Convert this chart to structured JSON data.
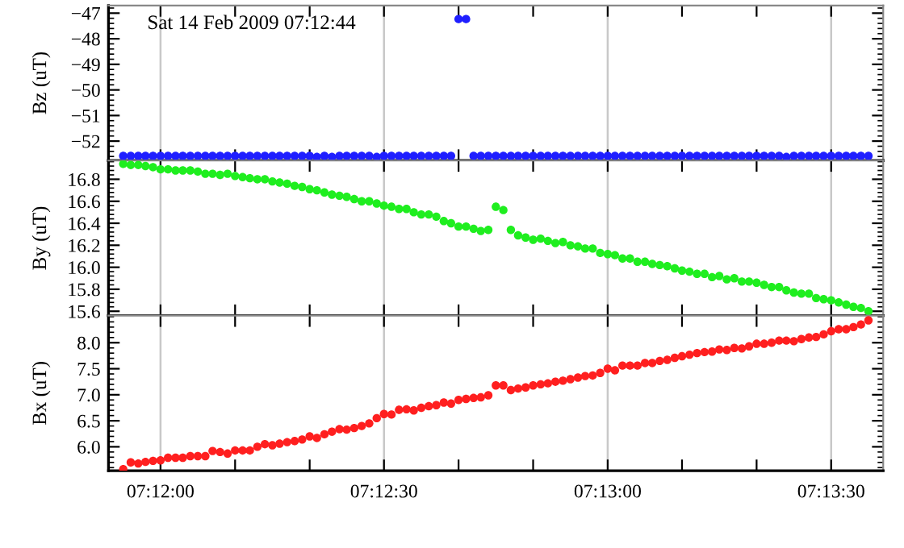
{
  "chart_data": [
    {
      "type": "scatter",
      "annotations": [
        "Sat 14 Feb 2009 07:12:44"
      ],
      "ylabel": "Bz (uT)",
      "color": "#1f1fff",
      "marker": "circle",
      "grid": "x",
      "tick_labels": "y",
      "x": [
        7.19861,
        7.19889,
        7.19917,
        7.19944,
        7.19972,
        7.2,
        7.20028,
        7.20056,
        7.20083,
        7.20111,
        7.20139,
        7.20167,
        7.20194,
        7.20222,
        7.2025,
        7.20278,
        7.20306,
        7.20333,
        7.20361,
        7.20389,
        7.20417,
        7.20444,
        7.20472,
        7.205,
        7.20528,
        7.20556,
        7.20583,
        7.20611,
        7.20639,
        7.20667,
        7.20694,
        7.20722,
        7.2075,
        7.20778,
        7.20806,
        7.20833,
        7.20861,
        7.20889,
        7.20917,
        7.20944,
        7.20972,
        7.21,
        7.21028,
        7.21056,
        7.21083,
        7.21111,
        7.21139,
        7.21167,
        7.21194,
        7.21222,
        7.2125,
        7.21278,
        7.21306,
        7.21333,
        7.21361,
        7.21389,
        7.21417,
        7.21444,
        7.21472,
        7.215,
        7.21528,
        7.21556,
        7.21583,
        7.21611,
        7.21639,
        7.21667,
        7.21694,
        7.21722,
        7.2175,
        7.21778,
        7.21806,
        7.21833,
        7.21861,
        7.21889,
        7.21917,
        7.21944,
        7.21972,
        7.22,
        7.22028,
        7.22056,
        7.22083,
        7.22111,
        7.22139,
        7.22167,
        7.22194,
        7.22222,
        7.2225,
        7.22278,
        7.22306,
        7.22333,
        7.22361,
        7.22389,
        7.22417,
        7.22444,
        7.22472,
        7.225,
        7.22528,
        7.22556,
        7.22583,
        7.22611,
        7.22639
      ],
      "values": [
        -52.58,
        -52.58,
        -52.58,
        -52.58,
        -52.58,
        -52.58,
        -52.58,
        -52.58,
        -52.58,
        -52.58,
        -52.58,
        -52.58,
        -52.58,
        -52.58,
        -52.58,
        -52.58,
        -52.58,
        -52.58,
        -52.58,
        -52.58,
        -52.58,
        -52.58,
        -52.58,
        -52.58,
        -52.58,
        -52.58,
        -52.62,
        -52.58,
        -52.62,
        -52.58,
        -52.58,
        -52.58,
        -52.58,
        -52.58,
        -52.62,
        -52.58,
        -52.58,
        -52.58,
        -52.58,
        -52.58,
        -52.58,
        -52.58,
        -52.58,
        -52.58,
        -52.58,
        -47.23,
        -47.23,
        -52.58,
        -52.58,
        -52.58,
        -52.58,
        -52.58,
        -52.58,
        -52.58,
        -52.58,
        -52.58,
        -52.58,
        -52.58,
        -52.58,
        -52.58,
        -52.58,
        -52.58,
        -52.58,
        -52.58,
        -52.58,
        -52.58,
        -52.58,
        -52.58,
        -52.58,
        -52.58,
        -52.58,
        -52.58,
        -52.58,
        -52.58,
        -52.58,
        -52.58,
        -52.58,
        -52.58,
        -52.58,
        -52.58,
        -52.58,
        -52.58,
        -52.58,
        -52.58,
        -52.58,
        -52.58,
        -52.58,
        -52.58,
        -52.58,
        -52.62,
        -52.58,
        -52.58,
        -52.58,
        -52.58,
        -52.58,
        -52.58,
        -52.58,
        -52.58,
        -52.58,
        -52.58,
        -52.58
      ],
      "xlim": [
        7.19806,
        7.22694
      ],
      "xticks": [
        {
          "value": 7.2,
          "label": null
        },
        {
          "value": 7.20278,
          "label": null
        },
        {
          "value": 7.20556,
          "label": null
        },
        {
          "value": 7.20833,
          "label": null
        },
        {
          "value": 7.21111,
          "label": null
        },
        {
          "value": 7.21389,
          "label": null
        },
        {
          "value": 7.21667,
          "label": null
        },
        {
          "value": 7.21944,
          "label": null
        },
        {
          "value": 7.22222,
          "label": null
        },
        {
          "value": 7.225,
          "label": null
        }
      ],
      "ylim": [
        -52.76,
        -46.7
      ],
      "yticks": [
        {
          "value": -52,
          "label": "−52"
        },
        {
          "value": -51,
          "label": "−51"
        },
        {
          "value": -50,
          "label": "−50"
        },
        {
          "value": -49,
          "label": "−49"
        },
        {
          "value": -48,
          "label": "−48"
        },
        {
          "value": -47,
          "label": "−47"
        }
      ]
    },
    {
      "type": "scatter",
      "ylabel": "By (uT)",
      "color": "#1fee1f",
      "marker": "circle",
      "grid": "x",
      "tick_labels": "y",
      "x": [
        7.19861,
        7.19889,
        7.19917,
        7.19944,
        7.19972,
        7.2,
        7.20028,
        7.20056,
        7.20083,
        7.20111,
        7.20139,
        7.20167,
        7.20194,
        7.20222,
        7.2025,
        7.20278,
        7.20306,
        7.20333,
        7.20361,
        7.20389,
        7.20417,
        7.20444,
        7.20472,
        7.205,
        7.20528,
        7.20556,
        7.20583,
        7.20611,
        7.20639,
        7.20667,
        7.20694,
        7.20722,
        7.2075,
        7.20778,
        7.20806,
        7.20833,
        7.20861,
        7.20889,
        7.20917,
        7.20944,
        7.20972,
        7.21,
        7.21028,
        7.21056,
        7.21083,
        7.21111,
        7.21139,
        7.21167,
        7.21194,
        7.21222,
        7.2125,
        7.21278,
        7.21306,
        7.21333,
        7.21361,
        7.21389,
        7.21417,
        7.21444,
        7.21472,
        7.215,
        7.21528,
        7.21556,
        7.21583,
        7.21611,
        7.21639,
        7.21667,
        7.21694,
        7.21722,
        7.2175,
        7.21778,
        7.21806,
        7.21833,
        7.21861,
        7.21889,
        7.21917,
        7.21944,
        7.21972,
        7.22,
        7.22028,
        7.22056,
        7.22083,
        7.22111,
        7.22139,
        7.22167,
        7.22194,
        7.22222,
        7.2225,
        7.22278,
        7.22306,
        7.22333,
        7.22361,
        7.22389,
        7.22417,
        7.22444,
        7.22472,
        7.225,
        7.22528,
        7.22556,
        7.22583,
        7.22611,
        7.22639
      ],
      "values": [
        16.94,
        16.93,
        16.93,
        16.92,
        16.91,
        16.89,
        16.89,
        16.88,
        16.88,
        16.88,
        16.87,
        16.85,
        16.85,
        16.84,
        16.85,
        16.83,
        16.82,
        16.81,
        16.8,
        16.8,
        16.78,
        16.77,
        16.76,
        16.74,
        16.73,
        16.71,
        16.7,
        16.68,
        16.66,
        16.65,
        16.64,
        16.62,
        16.6,
        16.6,
        16.58,
        16.56,
        16.55,
        16.53,
        16.53,
        16.5,
        16.48,
        16.48,
        16.46,
        16.42,
        16.4,
        16.37,
        16.37,
        16.35,
        16.33,
        16.34,
        16.55,
        16.52,
        16.34,
        16.29,
        16.27,
        16.25,
        16.26,
        16.24,
        16.22,
        16.23,
        16.2,
        16.19,
        16.17,
        16.17,
        16.13,
        16.12,
        16.11,
        16.08,
        16.08,
        16.05,
        16.05,
        16.03,
        16.02,
        16.01,
        15.99,
        15.97,
        15.96,
        15.94,
        15.94,
        15.91,
        15.92,
        15.89,
        15.9,
        15.87,
        15.87,
        15.86,
        15.84,
        15.82,
        15.82,
        15.79,
        15.77,
        15.76,
        15.76,
        15.72,
        15.71,
        15.7,
        15.68,
        15.66,
        15.64,
        15.63,
        15.6
      ],
      "xlim": [
        7.19806,
        7.22694
      ],
      "xticks": [
        {
          "value": 7.2,
          "label": null
        },
        {
          "value": 7.20278,
          "label": null
        },
        {
          "value": 7.20556,
          "label": null
        },
        {
          "value": 7.20833,
          "label": null
        },
        {
          "value": 7.21111,
          "label": null
        },
        {
          "value": 7.21389,
          "label": null
        },
        {
          "value": 7.21667,
          "label": null
        },
        {
          "value": 7.21944,
          "label": null
        },
        {
          "value": 7.22222,
          "label": null
        },
        {
          "value": 7.225,
          "label": null
        }
      ],
      "ylim": [
        15.56,
        16.97
      ],
      "yticks": [
        15.6,
        15.8,
        {
          "value": 16,
          "label": "16.0"
        },
        16.2,
        16.4,
        16.6,
        16.8
      ]
    },
    {
      "type": "scatter",
      "ylabel": "Bx (uT)",
      "color": "#ff1f1f",
      "marker": "circle",
      "grid": "x",
      "x": [
        7.19861,
        7.19889,
        7.19917,
        7.19944,
        7.19972,
        7.2,
        7.20028,
        7.20056,
        7.20083,
        7.20111,
        7.20139,
        7.20167,
        7.20194,
        7.20222,
        7.2025,
        7.20278,
        7.20306,
        7.20333,
        7.20361,
        7.20389,
        7.20417,
        7.20444,
        7.20472,
        7.205,
        7.20528,
        7.20556,
        7.20583,
        7.20611,
        7.20639,
        7.20667,
        7.20694,
        7.20722,
        7.2075,
        7.20778,
        7.20806,
        7.20833,
        7.20861,
        7.20889,
        7.20917,
        7.20944,
        7.20972,
        7.21,
        7.21028,
        7.21056,
        7.21083,
        7.21111,
        7.21139,
        7.21167,
        7.21194,
        7.21222,
        7.2125,
        7.21278,
        7.21306,
        7.21333,
        7.21361,
        7.21389,
        7.21417,
        7.21444,
        7.21472,
        7.215,
        7.21528,
        7.21556,
        7.21583,
        7.21611,
        7.21639,
        7.21667,
        7.21694,
        7.21722,
        7.2175,
        7.21778,
        7.21806,
        7.21833,
        7.21861,
        7.21889,
        7.21917,
        7.21944,
        7.21972,
        7.22,
        7.22028,
        7.22056,
        7.22083,
        7.22111,
        7.22139,
        7.22167,
        7.22194,
        7.22222,
        7.2225,
        7.22278,
        7.22306,
        7.22333,
        7.22361,
        7.22389,
        7.22417,
        7.22444,
        7.22472,
        7.225,
        7.22528,
        7.22556,
        7.22583,
        7.22611,
        7.22639
      ],
      "values": [
        5.57,
        5.7,
        5.68,
        5.71,
        5.73,
        5.74,
        5.79,
        5.79,
        5.79,
        5.82,
        5.82,
        5.82,
        5.92,
        5.9,
        5.87,
        5.93,
        5.93,
        5.93,
        6.0,
        6.05,
        6.03,
        6.06,
        6.09,
        6.11,
        6.14,
        6.2,
        6.17,
        6.24,
        6.29,
        6.34,
        6.33,
        6.36,
        6.4,
        6.45,
        6.55,
        6.63,
        6.62,
        6.71,
        6.72,
        6.7,
        6.75,
        6.78,
        6.8,
        6.85,
        6.83,
        6.9,
        6.92,
        6.94,
        6.95,
        6.99,
        7.18,
        7.18,
        7.09,
        7.12,
        7.14,
        7.18,
        7.2,
        7.22,
        7.25,
        7.27,
        7.3,
        7.33,
        7.36,
        7.37,
        7.42,
        7.5,
        7.47,
        7.56,
        7.56,
        7.56,
        7.61,
        7.61,
        7.65,
        7.67,
        7.71,
        7.74,
        7.77,
        7.8,
        7.82,
        7.83,
        7.87,
        7.86,
        7.9,
        7.89,
        7.93,
        7.98,
        7.98,
        8.0,
        8.04,
        8.04,
        8.03,
        8.07,
        8.1,
        8.11,
        8.16,
        8.22,
        8.26,
        8.26,
        8.3,
        8.35,
        8.43
      ],
      "xlim": [
        7.19806,
        7.22694
      ],
      "xticks": [
        {
          "value": 7.2,
          "label": "07:12:00"
        },
        {
          "value": 7.20278,
          "label": null
        },
        {
          "value": 7.20556,
          "label": null
        },
        {
          "value": 7.20833,
          "label": "07:12:30"
        },
        {
          "value": 7.21111,
          "label": null
        },
        {
          "value": 7.21389,
          "label": null
        },
        {
          "value": 7.21667,
          "label": "07:13:00"
        },
        {
          "value": 7.21944,
          "label": null
        },
        {
          "value": 7.22222,
          "label": null
        },
        {
          "value": 7.225,
          "label": "07:13:30"
        }
      ],
      "ylim": [
        5.54,
        8.52
      ],
      "yticks": [
        {
          "value": 6,
          "label": "6.0"
        },
        6.5,
        {
          "value": 7,
          "label": "7.0"
        },
        7.5,
        {
          "value": 8,
          "label": "8.0"
        }
      ]
    }
  ]
}
